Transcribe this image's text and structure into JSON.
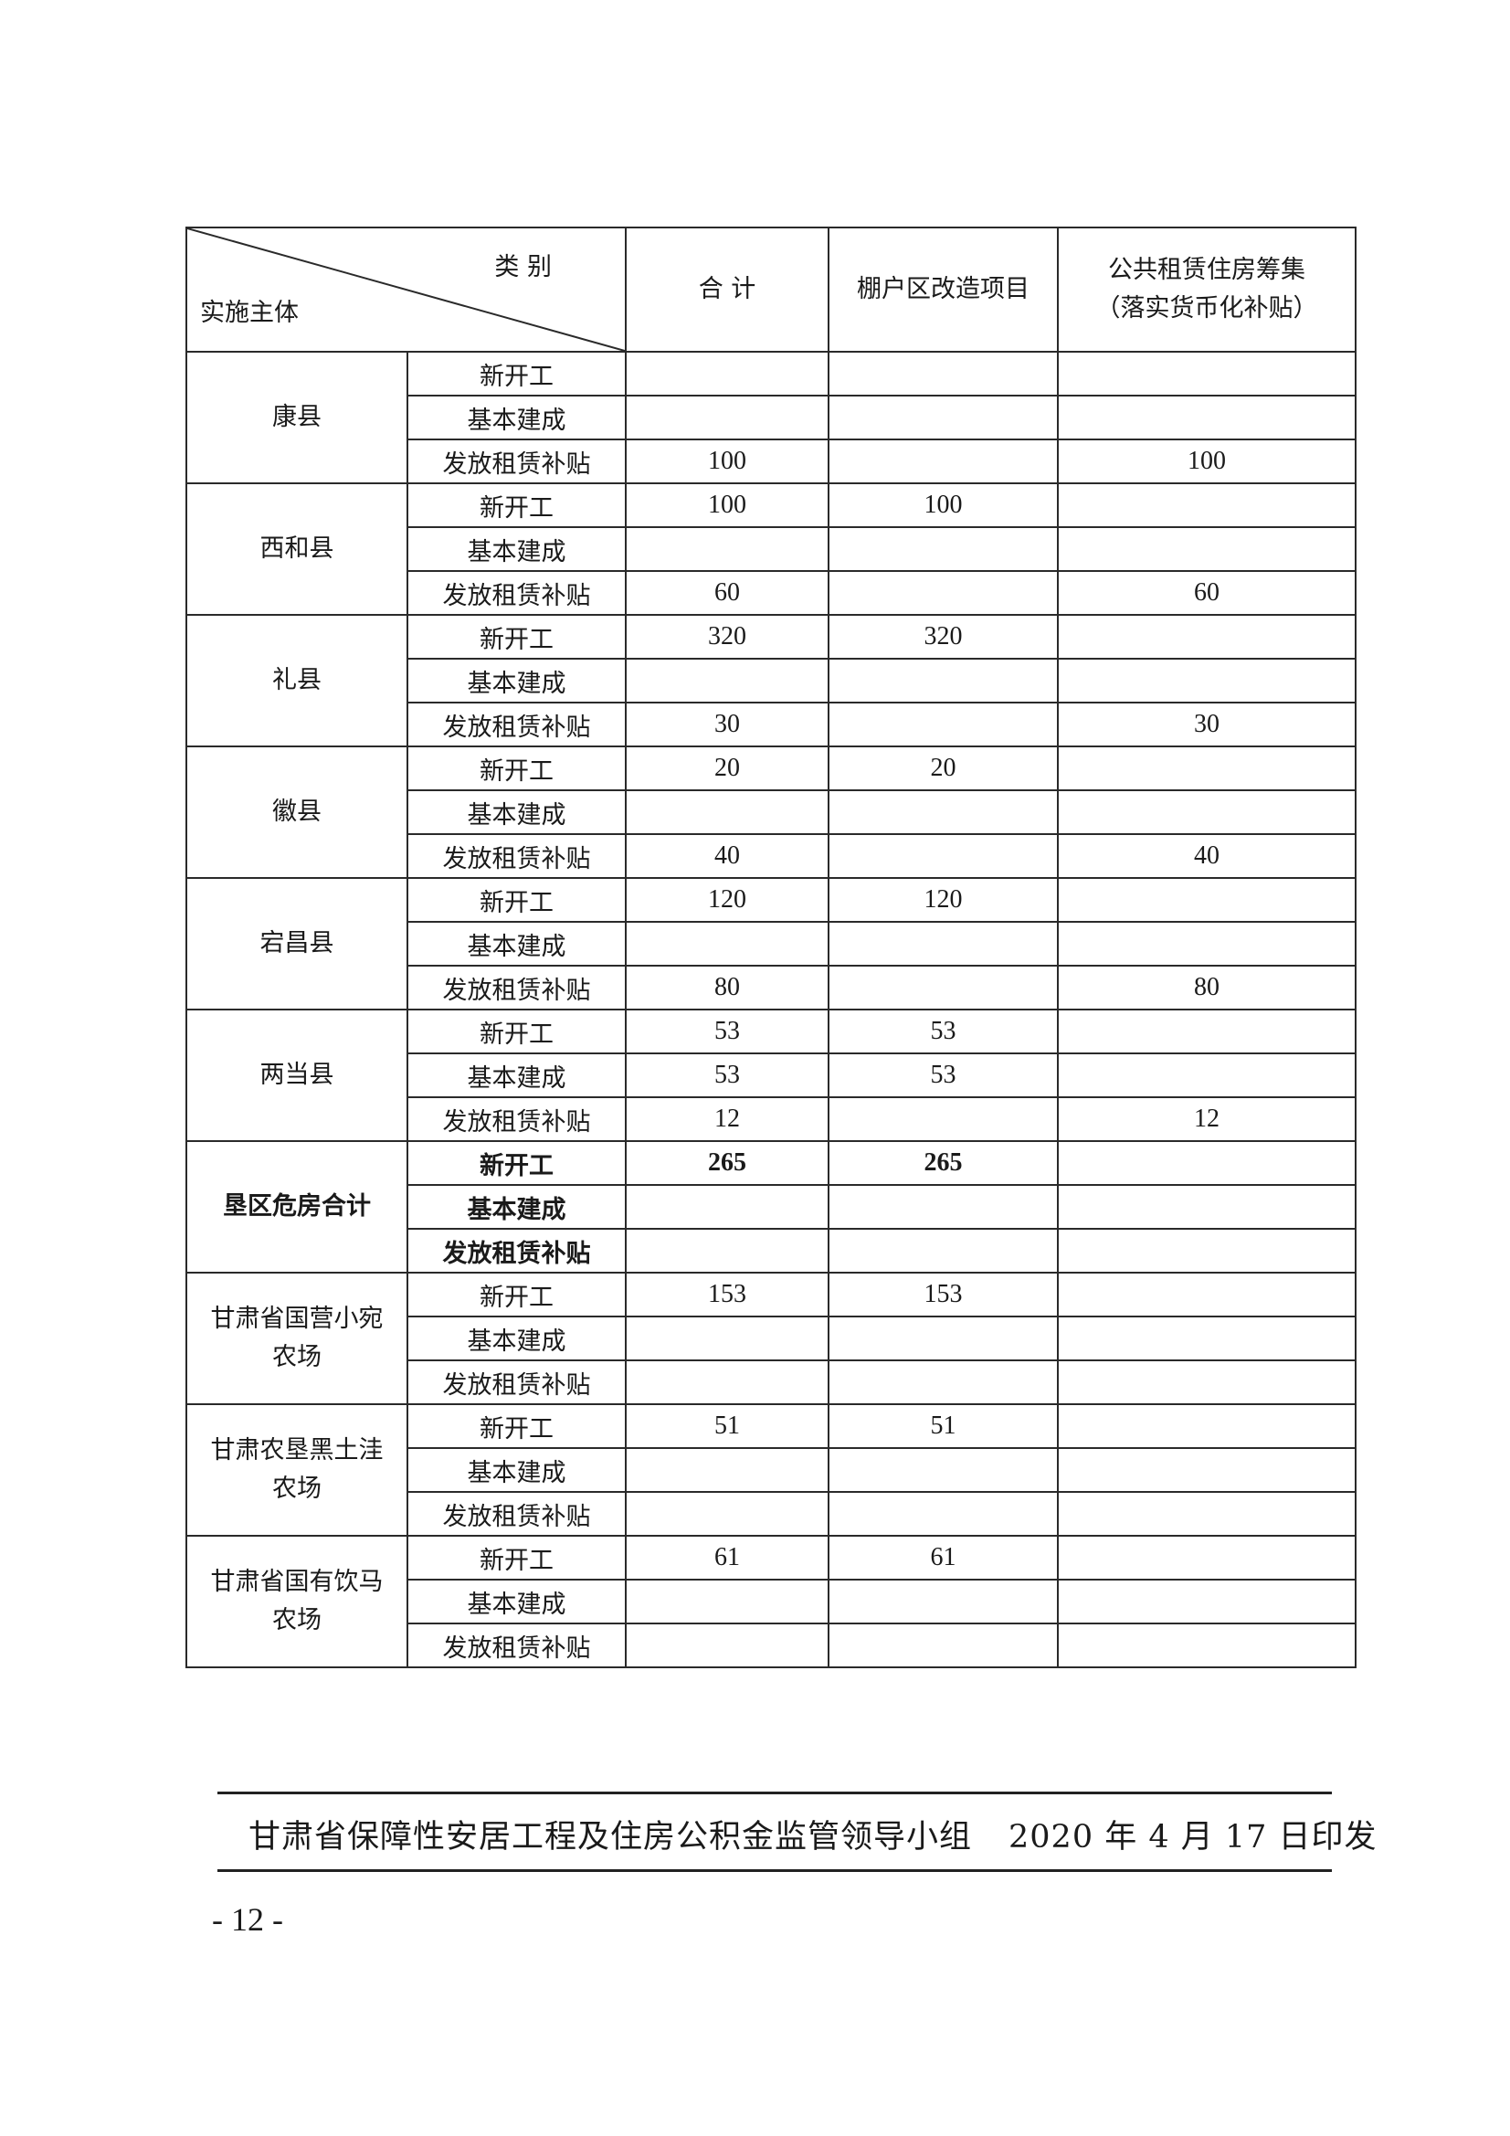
{
  "header": {
    "category_label": "类 别",
    "entity_label": "实施主体",
    "columns": [
      "合 计",
      "棚户区改造项目",
      "公共租赁住房筹集\n（落实货币化补贴）"
    ]
  },
  "groups": [
    {
      "name": "康县",
      "rows": [
        [
          "新开工",
          "",
          "",
          ""
        ],
        [
          "基本建成",
          "",
          "",
          ""
        ],
        [
          "发放租赁补贴",
          "100",
          "",
          "100"
        ]
      ]
    },
    {
      "name": "西和县",
      "rows": [
        [
          "新开工",
          "100",
          "100",
          ""
        ],
        [
          "基本建成",
          "",
          "",
          ""
        ],
        [
          "发放租赁补贴",
          "60",
          "",
          "60"
        ]
      ]
    },
    {
      "name": "礼县",
      "rows": [
        [
          "新开工",
          "320",
          "320",
          ""
        ],
        [
          "基本建成",
          "",
          "",
          ""
        ],
        [
          "发放租赁补贴",
          "30",
          "",
          "30"
        ]
      ]
    },
    {
      "name": "徽县",
      "rows": [
        [
          "新开工",
          "20",
          "20",
          ""
        ],
        [
          "基本建成",
          "",
          "",
          ""
        ],
        [
          "发放租赁补贴",
          "40",
          "",
          "40"
        ]
      ]
    },
    {
      "name": "宕昌县",
      "rows": [
        [
          "新开工",
          "120",
          "120",
          ""
        ],
        [
          "基本建成",
          "",
          "",
          ""
        ],
        [
          "发放租赁补贴",
          "80",
          "",
          "80"
        ]
      ]
    },
    {
      "name": "两当县",
      "rows": [
        [
          "新开工",
          "53",
          "53",
          ""
        ],
        [
          "基本建成",
          "53",
          "53",
          ""
        ],
        [
          "发放租赁补贴",
          "12",
          "",
          "12"
        ]
      ]
    },
    {
      "name": "垦区危房合计",
      "bold": true,
      "rows": [
        [
          "新开工",
          "265",
          "265",
          ""
        ],
        [
          "基本建成",
          "",
          "",
          ""
        ],
        [
          "发放租赁补贴",
          "",
          "",
          ""
        ]
      ]
    },
    {
      "name": "甘肃省国营小宛农场",
      "rows": [
        [
          "新开工",
          "153",
          "153",
          ""
        ],
        [
          "基本建成",
          "",
          "",
          ""
        ],
        [
          "发放租赁补贴",
          "",
          "",
          ""
        ]
      ]
    },
    {
      "name": "甘肃农垦黑土洼农场",
      "rows": [
        [
          "新开工",
          "51",
          "51",
          ""
        ],
        [
          "基本建成",
          "",
          "",
          ""
        ],
        [
          "发放租赁补贴",
          "",
          "",
          ""
        ]
      ]
    },
    {
      "name": "甘肃省国有饮马农场",
      "rows": [
        [
          "新开工",
          "61",
          "61",
          ""
        ],
        [
          "基本建成",
          "",
          "",
          ""
        ],
        [
          "发放租赁补贴",
          "",
          "",
          ""
        ]
      ]
    }
  ],
  "footer": {
    "issuer": "甘肃省保障性安居工程及住房公积金监管领导小组",
    "date": "2020 年 4 月 17 日印发"
  },
  "page_number": "- 12 -"
}
